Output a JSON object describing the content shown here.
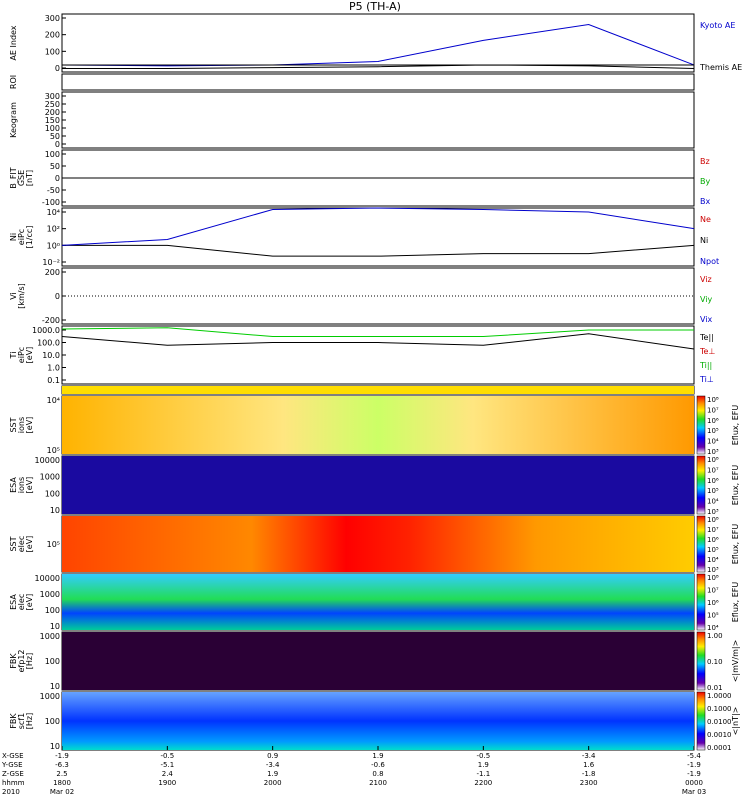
{
  "title": "P5 (TH-A)",
  "time_axis": {
    "ticks": [
      {
        "hhmm": "1800",
        "xgse": "-1.9",
        "ygse": "-6.3",
        "zgse": "2.5",
        "date": "Mar 02",
        "year": "2010"
      },
      {
        "hhmm": "1900",
        "xgse": "-0.5",
        "ygse": "-5.1",
        "zgse": "2.4",
        "date": "",
        "year": ""
      },
      {
        "hhmm": "2000",
        "xgse": "0.9",
        "ygse": "-3.4",
        "zgse": "1.9",
        "date": "",
        "year": ""
      },
      {
        "hhmm": "2100",
        "xgse": "1.9",
        "ygse": "-0.6",
        "zgse": "0.8",
        "date": "",
        "year": ""
      },
      {
        "hhmm": "2200",
        "xgse": "-0.5",
        "ygse": "1.9",
        "zgse": "-1.1",
        "date": "",
        "year": ""
      },
      {
        "hhmm": "2300",
        "xgse": "-3.4",
        "ygse": "1.6",
        "zgse": "-1.8",
        "date": "",
        "year": ""
      },
      {
        "hhmm": "0000",
        "xgse": "-5.4",
        "ygse": "-1.9",
        "zgse": "-1.9",
        "date": "Mar 03",
        "year": ""
      }
    ],
    "row_labels": [
      "X-GSE",
      "Y-GSE",
      "Z-GSE",
      "hhmm",
      "2010"
    ]
  },
  "panels": [
    {
      "id": "ae",
      "ylabel": [
        "AE Index"
      ],
      "ticks": [
        "0",
        "100",
        "200",
        "300"
      ],
      "legend": [
        {
          "text": "Kyoto AE",
          "color": "#0000cc"
        },
        {
          "text": "Themis AE",
          "color": "#000000"
        }
      ]
    },
    {
      "id": "roi",
      "ylabel": [
        "ROI"
      ],
      "ticks": [],
      "legend": []
    },
    {
      "id": "keogram",
      "ylabel": [
        "Keogram"
      ],
      "ticks": [
        "0",
        "50",
        "100",
        "150",
        "200",
        "250",
        "300"
      ],
      "legend": []
    },
    {
      "id": "bfit",
      "ylabel": [
        "B_FIT",
        "GSE",
        "[nT]"
      ],
      "ticks": [
        "-100",
        "-50",
        "0",
        "50",
        "100"
      ],
      "legend": [
        {
          "text": "Bz",
          "color": "#cc0000"
        },
        {
          "text": "By",
          "color": "#00aa00"
        },
        {
          "text": "Bx",
          "color": "#0000cc"
        }
      ]
    },
    {
      "id": "ni",
      "ylabel": [
        "Ni",
        "eiPc",
        "[1/cc]"
      ],
      "ticks": [
        "10⁻²",
        "10⁰",
        "10²",
        "10⁴"
      ],
      "legend": [
        {
          "text": "Ne",
          "color": "#cc0000"
        },
        {
          "text": "Ni",
          "color": "#000000"
        },
        {
          "text": "Npot",
          "color": "#0000cc"
        }
      ]
    },
    {
      "id": "vi",
      "ylabel": [
        "Vi",
        "[km/s]"
      ],
      "ticks": [
        "-200",
        "0",
        "200"
      ],
      "legend": [
        {
          "text": "Viz",
          "color": "#cc0000"
        },
        {
          "text": "Viy",
          "color": "#00aa00"
        },
        {
          "text": "Vix",
          "color": "#0000cc"
        }
      ]
    },
    {
      "id": "ti",
      "ylabel": [
        "Ti",
        "eiPc",
        "[eV]"
      ],
      "ticks": [
        "0.1",
        "1.0",
        "10.0",
        "100.0",
        "1000.0"
      ],
      "legend": [
        {
          "text": "Te||",
          "color": "#000000"
        },
        {
          "text": "Te⊥",
          "color": "#cc0000"
        },
        {
          "text": "Ti||",
          "color": "#00aa00"
        },
        {
          "text": "Ti⊥",
          "color": "#0000cc"
        }
      ]
    },
    {
      "id": "mode",
      "ylabel": [],
      "ticks": [],
      "legend": []
    },
    {
      "id": "sst_i",
      "ylabel": [
        "SST",
        "ions",
        "[eV]"
      ],
      "ticks": [
        "10⁵",
        "10⁴"
      ],
      "cbar": "Eflux, EFU",
      "cbticks": [
        "10³",
        "10⁴",
        "10⁵",
        "10⁶",
        "10⁷",
        "10⁸"
      ]
    },
    {
      "id": "esa_i",
      "ylabel": [
        "ESA",
        "ions",
        "[eV]"
      ],
      "ticks": [
        "10",
        "100",
        "1000",
        "10000"
      ],
      "cbar": "Eflux, EFU",
      "cbticks": [
        "10³",
        "10⁴",
        "10⁵",
        "10⁶",
        "10⁷",
        "10⁸"
      ]
    },
    {
      "id": "sst_e",
      "ylabel": [
        "SST",
        "elec",
        "[eV]"
      ],
      "ticks": [
        "10⁵"
      ],
      "cbar": "Eflux, EFU",
      "cbticks": [
        "10³",
        "10⁴",
        "10⁵",
        "10⁶",
        "10⁷",
        "10⁸"
      ]
    },
    {
      "id": "esa_e",
      "ylabel": [
        "ESA",
        "elec",
        "[eV]"
      ],
      "ticks": [
        "10",
        "100",
        "1000",
        "10000"
      ],
      "cbar": "Eflux, EFU",
      "cbticks": [
        "10⁴",
        "10⁵",
        "10⁶",
        "10⁷",
        "10⁸"
      ]
    },
    {
      "id": "fbk_e",
      "ylabel": [
        "FBK",
        "efp12",
        "[Hz]"
      ],
      "ticks": [
        "10",
        "100",
        "1000"
      ],
      "cbar": "<|mV/m|>",
      "cbticks": [
        "0.01",
        "0.10",
        "1.00"
      ]
    },
    {
      "id": "fbk_b",
      "ylabel": [
        "FBK",
        "scf1",
        "[Hz]"
      ],
      "ticks": [
        "10",
        "100",
        "1000"
      ],
      "cbar": "<|nT|>",
      "cbticks": [
        "0.0001",
        "0.0010",
        "0.0100",
        "0.1000",
        "1.0000"
      ]
    }
  ],
  "chart_data": {
    "type": "line",
    "title": "P5 (TH-A)",
    "x": [
      "1800",
      "1900",
      "2000",
      "2100",
      "2200",
      "2300",
      "0000"
    ],
    "series": [
      {
        "name": "Kyoto AE",
        "panel": "ae",
        "values": [
          40,
          35,
          40,
          60,
          180,
          270,
          40
        ]
      },
      {
        "name": "Themis AE",
        "panel": "ae",
        "values": [
          20,
          20,
          25,
          30,
          40,
          35,
          20
        ]
      },
      {
        "name": "Ni",
        "panel": "ni",
        "values": [
          1,
          1,
          0.05,
          0.05,
          0.1,
          0.1,
          1
        ]
      },
      {
        "name": "Npot",
        "panel": "ni",
        "values": [
          1,
          5,
          20000,
          30000,
          20000,
          10000,
          100
        ]
      },
      {
        "name": "Ti||",
        "panel": "ti",
        "values": [
          1200,
          1500,
          300,
          300,
          300,
          1000,
          1000
        ]
      },
      {
        "name": "Te||",
        "panel": "ti",
        "values": [
          300,
          60,
          100,
          100,
          60,
          500,
          30
        ]
      }
    ],
    "ylim_ae": [
      0,
      330
    ],
    "grid": false
  }
}
